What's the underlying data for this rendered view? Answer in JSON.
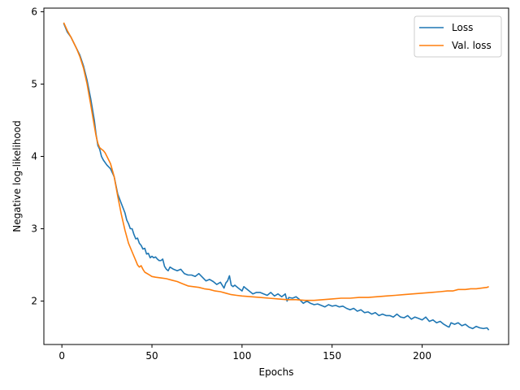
{
  "chart_data": {
    "type": "line",
    "title": "",
    "xlabel": "Epochs",
    "ylabel": "Negative log-likelihood",
    "xlim": [
      -10,
      248
    ],
    "ylim": [
      1.4,
      6.05
    ],
    "xticks": [
      0,
      50,
      100,
      150,
      200
    ],
    "yticks": [
      2,
      3,
      4,
      5,
      6
    ],
    "grid": false,
    "legend_position": "top-right",
    "series": [
      {
        "name": "Loss",
        "color": "#1f77b4",
        "x": [
          1,
          3,
          5,
          8,
          10,
          12,
          14,
          16,
          18,
          19,
          20,
          21,
          22,
          23,
          25,
          27,
          29,
          31,
          33,
          35,
          36,
          37,
          38,
          39,
          40,
          41,
          42,
          43,
          44,
          45,
          46,
          47,
          48,
          49,
          50,
          51,
          52,
          53,
          54,
          55,
          56,
          57,
          58,
          59,
          60,
          62,
          64,
          66,
          68,
          70,
          72,
          74,
          76,
          78,
          80,
          82,
          84,
          86,
          88,
          90,
          91,
          92,
          93,
          94,
          95,
          96,
          98,
          100,
          101,
          102,
          104,
          106,
          108,
          110,
          112,
          114,
          116,
          118,
          120,
          122,
          124,
          125,
          126,
          128,
          130,
          132,
          134,
          136,
          138,
          140,
          142,
          144,
          146,
          148,
          150,
          152,
          154,
          156,
          158,
          160,
          162,
          164,
          166,
          168,
          170,
          172,
          174,
          176,
          178,
          180,
          182,
          184,
          186,
          188,
          190,
          192,
          194,
          196,
          198,
          200,
          202,
          204,
          206,
          208,
          210,
          212,
          214,
          215,
          216,
          218,
          220,
          222,
          224,
          226,
          228,
          230,
          232,
          234,
          236,
          237
        ],
        "y": [
          5.84,
          5.72,
          5.65,
          5.5,
          5.4,
          5.25,
          5.05,
          4.8,
          4.5,
          4.3,
          4.15,
          4.1,
          4.0,
          3.95,
          3.88,
          3.83,
          3.72,
          3.48,
          3.35,
          3.22,
          3.12,
          3.07,
          3.0,
          3.0,
          2.92,
          2.86,
          2.87,
          2.8,
          2.77,
          2.72,
          2.73,
          2.65,
          2.66,
          2.6,
          2.62,
          2.6,
          2.61,
          2.58,
          2.56,
          2.56,
          2.58,
          2.48,
          2.44,
          2.42,
          2.47,
          2.44,
          2.42,
          2.44,
          2.38,
          2.36,
          2.36,
          2.34,
          2.38,
          2.33,
          2.28,
          2.3,
          2.27,
          2.23,
          2.26,
          2.18,
          2.25,
          2.28,
          2.35,
          2.22,
          2.2,
          2.22,
          2.18,
          2.14,
          2.2,
          2.18,
          2.14,
          2.1,
          2.12,
          2.12,
          2.1,
          2.08,
          2.12,
          2.07,
          2.1,
          2.06,
          2.1,
          2.0,
          2.05,
          2.04,
          2.06,
          2.02,
          1.97,
          2.0,
          1.97,
          1.95,
          1.96,
          1.94,
          1.92,
          1.95,
          1.93,
          1.94,
          1.92,
          1.93,
          1.9,
          1.88,
          1.9,
          1.86,
          1.88,
          1.84,
          1.85,
          1.82,
          1.84,
          1.8,
          1.82,
          1.8,
          1.8,
          1.78,
          1.82,
          1.78,
          1.77,
          1.8,
          1.75,
          1.78,
          1.76,
          1.74,
          1.78,
          1.72,
          1.74,
          1.7,
          1.72,
          1.68,
          1.65,
          1.64,
          1.7,
          1.68,
          1.7,
          1.66,
          1.68,
          1.64,
          1.62,
          1.65,
          1.63,
          1.62,
          1.63,
          1.6
        ]
      },
      {
        "name": "Val. loss",
        "color": "#ff7f0e",
        "x": [
          1,
          3,
          5,
          8,
          10,
          12,
          14,
          16,
          18,
          19,
          20,
          21,
          22,
          23,
          24,
          25,
          27,
          29,
          31,
          33,
          35,
          37,
          39,
          41,
          42,
          43,
          44,
          45,
          46,
          48,
          50,
          52,
          55,
          58,
          61,
          64,
          67,
          70,
          73,
          76,
          79,
          82,
          85,
          88,
          91,
          94,
          97,
          100,
          105,
          110,
          115,
          120,
          125,
          130,
          135,
          140,
          145,
          150,
          155,
          160,
          165,
          170,
          175,
          180,
          185,
          190,
          195,
          200,
          205,
          210,
          214,
          217,
          220,
          224,
          227,
          230,
          233,
          236,
          237
        ],
        "y": [
          5.85,
          5.74,
          5.65,
          5.5,
          5.38,
          5.22,
          5.0,
          4.72,
          4.42,
          4.28,
          4.18,
          4.12,
          4.1,
          4.08,
          4.05,
          4.0,
          3.9,
          3.72,
          3.45,
          3.2,
          2.98,
          2.8,
          2.68,
          2.56,
          2.5,
          2.47,
          2.49,
          2.44,
          2.4,
          2.37,
          2.34,
          2.33,
          2.32,
          2.31,
          2.29,
          2.27,
          2.24,
          2.21,
          2.2,
          2.19,
          2.17,
          2.16,
          2.14,
          2.13,
          2.11,
          2.09,
          2.08,
          2.07,
          2.06,
          2.05,
          2.04,
          2.03,
          2.02,
          2.02,
          2.01,
          2.01,
          2.02,
          2.03,
          2.04,
          2.04,
          2.05,
          2.05,
          2.06,
          2.07,
          2.08,
          2.09,
          2.1,
          2.11,
          2.12,
          2.13,
          2.14,
          2.14,
          2.16,
          2.16,
          2.17,
          2.17,
          2.18,
          2.19,
          2.2
        ]
      }
    ]
  }
}
